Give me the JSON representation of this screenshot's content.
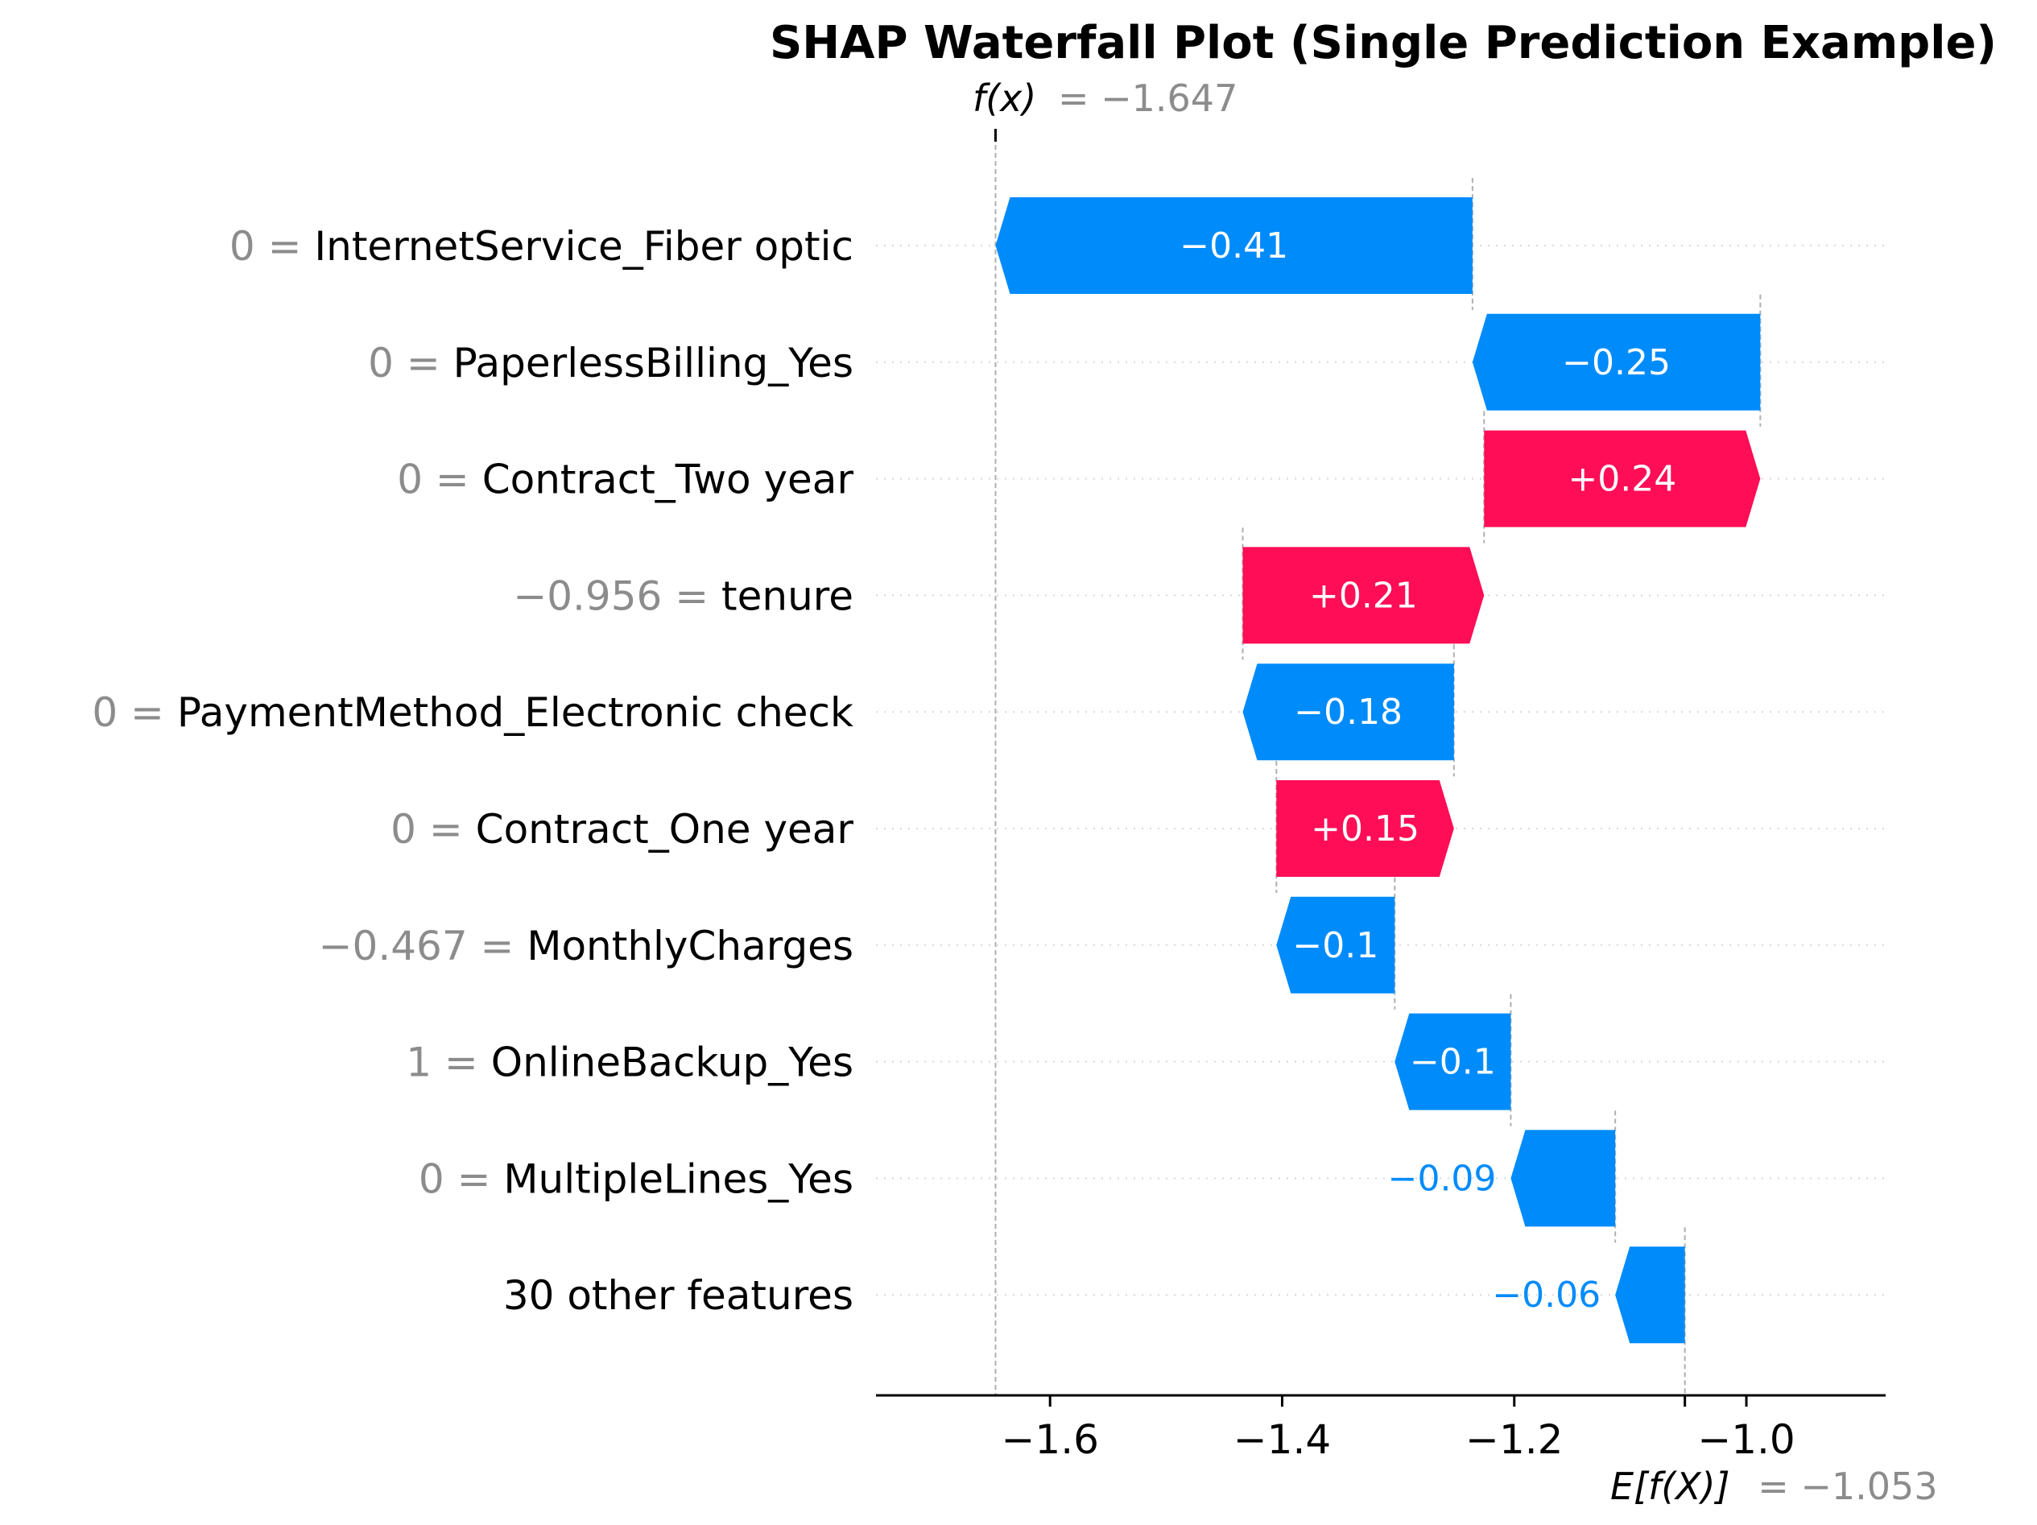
{
  "chart_data": {
    "type": "waterfall",
    "title": "SHAP Waterfall Plot (Single Prediction Example)",
    "fx": {
      "label": "f(x)",
      "equals": "= ",
      "value": -1.647,
      "value_text": "−1.647"
    },
    "base": {
      "label": "E[f(X)]",
      "equals": "= ",
      "value": -1.053,
      "value_text": "−1.053"
    },
    "xlim": [
      -1.75,
      -0.88
    ],
    "xticks": [
      {
        "value": -1.6,
        "label": "−1.6"
      },
      {
        "value": -1.4,
        "label": "−1.4"
      },
      {
        "value": -1.2,
        "label": "−1.2"
      },
      {
        "value": -1.0,
        "label": "−1.0"
      }
    ],
    "rows": [
      {
        "feature_value": "0 =",
        "feature": "InternetService_Fiber optic",
        "start": -1.236,
        "end": -1.647,
        "label": "−0.41"
      },
      {
        "feature_value": "0 =",
        "feature": "PaperlessBilling_Yes",
        "start": -0.988,
        "end": -1.236,
        "label": "−0.25"
      },
      {
        "feature_value": "0 =",
        "feature": "Contract_Two year",
        "start": -1.226,
        "end": -0.988,
        "label": "+0.24"
      },
      {
        "feature_value": "−0.956 =",
        "feature": "tenure",
        "start": -1.434,
        "end": -1.226,
        "label": "+0.21"
      },
      {
        "feature_value": "0 =",
        "feature": "PaymentMethod_Electronic check",
        "start": -1.252,
        "end": -1.434,
        "label": "−0.18"
      },
      {
        "feature_value": "0 =",
        "feature": "Contract_One year",
        "start": -1.405,
        "end": -1.252,
        "label": "+0.15"
      },
      {
        "feature_value": "−0.467 =",
        "feature": "MonthlyCharges",
        "start": -1.303,
        "end": -1.405,
        "label": "−0.1"
      },
      {
        "feature_value": "1 =",
        "feature": "OnlineBackup_Yes",
        "start": -1.203,
        "end": -1.303,
        "label": "−0.1"
      },
      {
        "feature_value": "0 =",
        "feature": "MultipleLines_Yes",
        "start": -1.113,
        "end": -1.203,
        "label": "−0.09"
      },
      {
        "feature_value": "",
        "feature": "30 other features",
        "start": -1.053,
        "end": -1.113,
        "label": "−0.06"
      }
    ],
    "colors": {
      "positive": "#ff0d57",
      "negative": "#008bfb",
      "value_gray": "#8c8c8c",
      "guide": "#b0b0b0",
      "grid": "#d9d9d9"
    }
  }
}
